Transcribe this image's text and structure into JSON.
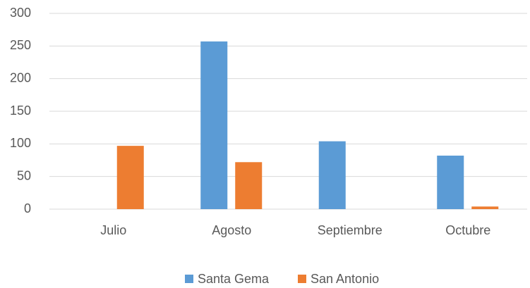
{
  "chart_data": {
    "type": "bar",
    "categories": [
      "Julio",
      "Agosto",
      "Septiembre",
      "Octubre"
    ],
    "series": [
      {
        "name": "Santa Gema",
        "color": "#5b9bd5",
        "values": [
          0,
          257,
          104,
          82
        ]
      },
      {
        "name": "San Antonio",
        "color": "#ed7d31",
        "values": [
          97,
          72,
          0,
          4
        ]
      }
    ],
    "ylim": [
      0,
      300
    ],
    "yticks": [
      0,
      50,
      100,
      150,
      200,
      250,
      300
    ],
    "grid": true,
    "legend": "bottom"
  }
}
